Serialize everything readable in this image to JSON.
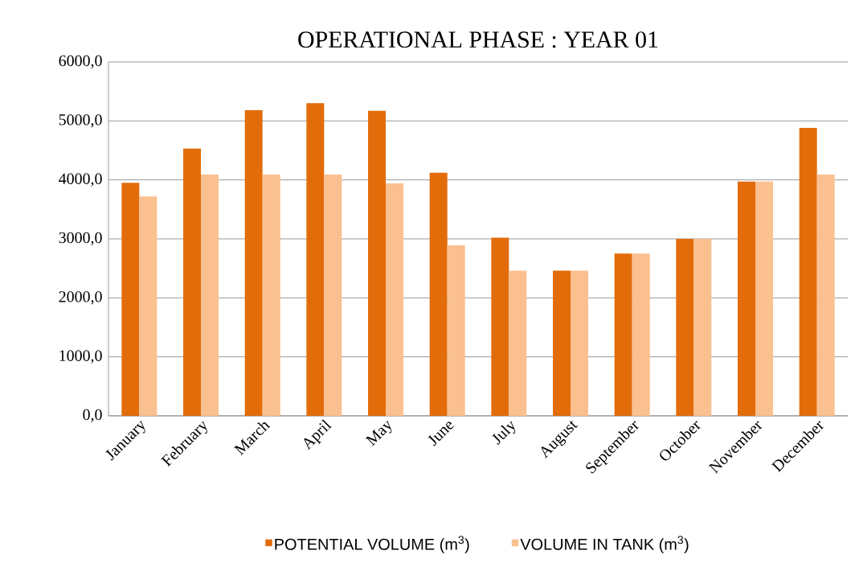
{
  "chart_data": {
    "type": "bar",
    "title": "OPERATIONAL PHASE : YEAR 01",
    "categories": [
      "January",
      "February",
      "March",
      "April",
      "May",
      "June",
      "July",
      "August",
      "September",
      "October",
      "November",
      "December"
    ],
    "series": [
      {
        "name": "POTENTIAL VOLUME (m$^{3}$)",
        "color": "#e36c0a",
        "values": [
          3950,
          4530,
          5180,
          5300,
          5170,
          4120,
          3020,
          2460,
          2750,
          3000,
          3970,
          4880
        ]
      },
      {
        "name": "VOLUME IN TANK (m$^{3}$)",
        "color": "#fac090",
        "values": [
          3720,
          4090,
          4090,
          4090,
          3940,
          2890,
          2460,
          2460,
          2750,
          3000,
          3970,
          4090
        ]
      }
    ],
    "ylim": [
      0,
      6000
    ],
    "yticks": [
      {
        "value": 0,
        "label": "0,0"
      },
      {
        "value": 1000,
        "label": "1000,0"
      },
      {
        "value": 2000,
        "label": "2000,0"
      },
      {
        "value": 3000,
        "label": "3000,0"
      },
      {
        "value": 4000,
        "label": "4000,0"
      },
      {
        "value": 5000,
        "label": "5000,0"
      },
      {
        "value": 6000,
        "label": "6000,0"
      }
    ],
    "grid": "y",
    "legend": "bottom"
  }
}
